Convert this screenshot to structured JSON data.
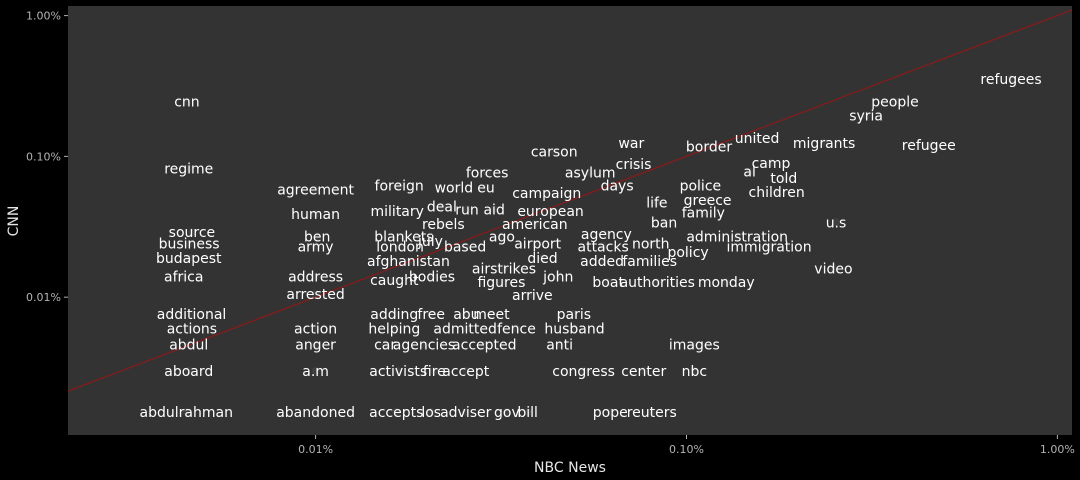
{
  "chart_data": {
    "type": "scatter",
    "title": "",
    "xlabel": "NBC News",
    "ylabel": "CNN",
    "x_scale": "log10",
    "y_scale": "log10",
    "xlim": [
      2.15e-05,
      0.01095
    ],
    "ylim": [
      1.05e-05,
      0.0117
    ],
    "x_ticks": [
      {
        "value": 0.0001,
        "label": "0.01%"
      },
      {
        "value": 0.001,
        "label": "0.10%"
      },
      {
        "value": 0.01,
        "label": "1.00%"
      }
    ],
    "y_ticks": [
      {
        "value": 0.0001,
        "label": "0.01%"
      },
      {
        "value": 0.001,
        "label": "0.10%"
      },
      {
        "value": 0.01,
        "label": "1.00%"
      }
    ],
    "grid": false,
    "reference_line": {
      "type": "y=x",
      "color": "#8b1a1a"
    },
    "colors": {
      "background": "#000000",
      "panel": "#333333",
      "points": "#ffffff",
      "line": "#8b1a1a",
      "text": "#ffffff"
    },
    "points": [
      {
        "label": "refugees",
        "x": 0.0075,
        "y": 0.00355
      },
      {
        "label": "people",
        "x": 0.00365,
        "y": 0.00245
      },
      {
        "label": "syria",
        "x": 0.00305,
        "y": 0.00195
      },
      {
        "label": "migrants",
        "x": 0.00235,
        "y": 0.00125
      },
      {
        "label": "refugee",
        "x": 0.0045,
        "y": 0.0012
      },
      {
        "label": "united",
        "x": 0.00155,
        "y": 0.00135
      },
      {
        "label": "border",
        "x": 0.00115,
        "y": 0.00118
      },
      {
        "label": "war",
        "x": 0.00071,
        "y": 0.00125
      },
      {
        "label": "carson",
        "x": 0.00044,
        "y": 0.00108
      },
      {
        "label": "crisis",
        "x": 0.00072,
        "y": 0.00088
      },
      {
        "label": "camp",
        "x": 0.00169,
        "y": 0.0009
      },
      {
        "label": "al",
        "x": 0.00148,
        "y": 0.00078
      },
      {
        "label": "told",
        "x": 0.00183,
        "y": 0.0007
      },
      {
        "label": "children",
        "x": 0.00175,
        "y": 0.00056
      },
      {
        "label": "asylum",
        "x": 0.00055,
        "y": 0.00077
      },
      {
        "label": "forces",
        "x": 0.00029,
        "y": 0.00077
      },
      {
        "label": "regime",
        "x": 4.55e-05,
        "y": 0.00082
      },
      {
        "label": "cnn",
        "x": 4.5e-05,
        "y": 0.00245
      },
      {
        "label": "agreement",
        "x": 0.0001,
        "y": 0.00058
      },
      {
        "label": "foreign",
        "x": 0.000168,
        "y": 0.00062
      },
      {
        "label": "world",
        "x": 0.000236,
        "y": 0.0006
      },
      {
        "label": "eu",
        "x": 0.000288,
        "y": 0.0006
      },
      {
        "label": "days",
        "x": 0.00065,
        "y": 0.00062
      },
      {
        "label": "police",
        "x": 0.00109,
        "y": 0.00062
      },
      {
        "label": "campaign",
        "x": 0.00042,
        "y": 0.00055
      },
      {
        "label": "greece",
        "x": 0.00114,
        "y": 0.00049
      },
      {
        "label": "life",
        "x": 0.000832,
        "y": 0.00047
      },
      {
        "label": "family",
        "x": 0.00111,
        "y": 0.0004
      },
      {
        "label": "human",
        "x": 0.0001,
        "y": 0.00039
      },
      {
        "label": "military",
        "x": 0.000166,
        "y": 0.00041
      },
      {
        "label": "deal",
        "x": 0.000219,
        "y": 0.00044
      },
      {
        "label": "run",
        "x": 0.000256,
        "y": 0.00042
      },
      {
        "label": "aid",
        "x": 0.000303,
        "y": 0.00042
      },
      {
        "label": "european",
        "x": 0.00043,
        "y": 0.00041
      },
      {
        "label": "rebels",
        "x": 0.000221,
        "y": 0.00033
      },
      {
        "label": "ban",
        "x": 0.00087,
        "y": 0.00034
      },
      {
        "label": "u.s",
        "x": 0.00253,
        "y": 0.00034
      },
      {
        "label": "american",
        "x": 0.00039,
        "y": 0.00033
      },
      {
        "label": "source",
        "x": 4.64e-05,
        "y": 0.00029
      },
      {
        "label": "ben",
        "x": 0.000101,
        "y": 0.00027
      },
      {
        "label": "blankets",
        "x": 0.000173,
        "y": 0.00027
      },
      {
        "label": "agency",
        "x": 0.000608,
        "y": 0.00028
      },
      {
        "label": "ago",
        "x": 0.000318,
        "y": 0.00027
      },
      {
        "label": "administration",
        "x": 0.00137,
        "y": 0.00027
      },
      {
        "label": "july",
        "x": 0.000204,
        "y": 0.00025
      },
      {
        "label": "airport",
        "x": 0.000397,
        "y": 0.00024
      },
      {
        "label": "north",
        "x": 0.000801,
        "y": 0.00024
      },
      {
        "label": "business",
        "x": 4.56e-05,
        "y": 0.00024
      },
      {
        "label": "army",
        "x": 0.0001,
        "y": 0.00023
      },
      {
        "label": "london",
        "x": 0.000169,
        "y": 0.00023
      },
      {
        "label": "based",
        "x": 0.000253,
        "y": 0.00023
      },
      {
        "label": "attacks",
        "x": 0.000596,
        "y": 0.00023
      },
      {
        "label": "immigration",
        "x": 0.00167,
        "y": 0.00023
      },
      {
        "label": "policy",
        "x": 0.00101,
        "y": 0.00021
      },
      {
        "label": "budapest",
        "x": 4.55e-05,
        "y": 0.00019
      },
      {
        "label": "died",
        "x": 0.000409,
        "y": 0.00019
      },
      {
        "label": "afghanistan",
        "x": 0.000178,
        "y": 0.00018
      },
      {
        "label": "added",
        "x": 0.000592,
        "y": 0.00018
      },
      {
        "label": "families",
        "x": 0.000796,
        "y": 0.00018
      },
      {
        "label": "airstrikes",
        "x": 0.000322,
        "y": 0.00016
      },
      {
        "label": "video",
        "x": 0.00249,
        "y": 0.00016
      },
      {
        "label": "africa",
        "x": 4.41e-05,
        "y": 0.00014
      },
      {
        "label": "address",
        "x": 0.0001,
        "y": 0.00014
      },
      {
        "label": "bodies",
        "x": 0.000206,
        "y": 0.00014
      },
      {
        "label": "john",
        "x": 0.000451,
        "y": 0.00014
      },
      {
        "label": "caught",
        "x": 0.000163,
        "y": 0.000132
      },
      {
        "label": "figures",
        "x": 0.000317,
        "y": 0.000128
      },
      {
        "label": "boat",
        "x": 0.000615,
        "y": 0.000128
      },
      {
        "label": "authorities",
        "x": 0.000834,
        "y": 0.000128
      },
      {
        "label": "monday",
        "x": 0.00128,
        "y": 0.000128
      },
      {
        "label": "arrested",
        "x": 0.0001,
        "y": 0.000105
      },
      {
        "label": "arrive",
        "x": 0.000384,
        "y": 0.000104
      },
      {
        "label": "additional",
        "x": 4.63e-05,
        "y": 7.6e-05
      },
      {
        "label": "adding",
        "x": 0.000163,
        "y": 7.6e-05
      },
      {
        "label": "free",
        "x": 0.000205,
        "y": 7.6e-05
      },
      {
        "label": "abu",
        "x": 0.000255,
        "y": 7.6e-05
      },
      {
        "label": "meet",
        "x": 0.000298,
        "y": 7.6e-05
      },
      {
        "label": "paris",
        "x": 0.000497,
        "y": 7.6e-05
      },
      {
        "label": "actions",
        "x": 4.64e-05,
        "y": 6e-05
      },
      {
        "label": "action",
        "x": 0.0001,
        "y": 6e-05
      },
      {
        "label": "helping",
        "x": 0.000163,
        "y": 6e-05
      },
      {
        "label": "admitted",
        "x": 0.000253,
        "y": 6e-05
      },
      {
        "label": "fence",
        "x": 0.000348,
        "y": 6e-05
      },
      {
        "label": "husband",
        "x": 0.000499,
        "y": 6e-05
      },
      {
        "label": "abdul",
        "x": 4.55e-05,
        "y": 4.6e-05
      },
      {
        "label": "anger",
        "x": 0.0001,
        "y": 4.6e-05
      },
      {
        "label": "car",
        "x": 0.000154,
        "y": 4.6e-05
      },
      {
        "label": "agencies",
        "x": 0.000196,
        "y": 4.6e-05
      },
      {
        "label": "accepted",
        "x": 0.000285,
        "y": 4.6e-05
      },
      {
        "label": "anti",
        "x": 0.000455,
        "y": 4.6e-05
      },
      {
        "label": "images",
        "x": 0.00105,
        "y": 4.6e-05
      },
      {
        "label": "aboard",
        "x": 4.55e-05,
        "y": 3e-05
      },
      {
        "label": "a.m",
        "x": 0.0001,
        "y": 3e-05
      },
      {
        "label": "activists",
        "x": 0.000167,
        "y": 3e-05
      },
      {
        "label": "fire",
        "x": 0.000209,
        "y": 3e-05
      },
      {
        "label": "accept",
        "x": 0.000254,
        "y": 3e-05
      },
      {
        "label": "congress",
        "x": 0.000528,
        "y": 3e-05
      },
      {
        "label": "center",
        "x": 0.000767,
        "y": 3e-05
      },
      {
        "label": "nbc",
        "x": 0.00105,
        "y": 3e-05
      },
      {
        "label": "abdulrahman",
        "x": 4.48e-05,
        "y": 1.53e-05
      },
      {
        "label": "abandoned",
        "x": 0.0001,
        "y": 1.53e-05
      },
      {
        "label": "accepts",
        "x": 0.000165,
        "y": 1.53e-05
      },
      {
        "label": "los",
        "x": 0.000205,
        "y": 1.53e-05
      },
      {
        "label": "adviser",
        "x": 0.000254,
        "y": 1.53e-05
      },
      {
        "label": "gov",
        "x": 0.000328,
        "y": 1.53e-05
      },
      {
        "label": "bill",
        "x": 0.000373,
        "y": 1.53e-05
      },
      {
        "label": "pope",
        "x": 0.000623,
        "y": 1.53e-05
      },
      {
        "label": "reuters",
        "x": 0.000806,
        "y": 1.53e-05
      }
    ]
  }
}
